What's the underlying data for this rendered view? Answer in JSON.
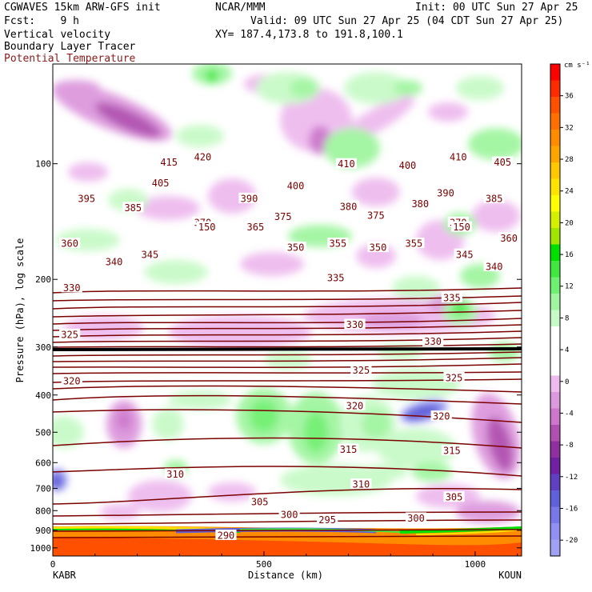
{
  "header": {
    "model": "CGWAVES 15km ARW-GFS init",
    "center": "NCAR/MMM",
    "init": "Init: 00 UTC Sun 27 Apr 25",
    "fcst": "Fcst:    9 h",
    "valid": "Valid: 09 UTC Sun 27 Apr 25 (04 CDT Sun 27 Apr 25)",
    "field1": "Vertical velocity",
    "field2": "Boundary Layer Tracer",
    "field3": "Potential Temperature",
    "xy": "XY= 187.4,173.8 to 191.8,100.1"
  },
  "colors": {
    "theta": "#7a0000",
    "field3_text": "#8b1a1a"
  },
  "chart_data": {
    "type": "heatmap",
    "xlabel": "Distance (km)",
    "ylabel": "Pressure (hPa), log scale",
    "xlim": [
      0,
      1110
    ],
    "ylim": [
      1050,
      55
    ],
    "y_scale": "log",
    "x_ticks": [
      "0",
      "500",
      "1000"
    ],
    "x_tick_values": [
      0,
      500,
      1000
    ],
    "y_ticks": [
      "100",
      "200",
      "300",
      "400",
      "500",
      "600",
      "700",
      "800",
      "900",
      "1000"
    ],
    "y_tick_values": [
      100,
      200,
      300,
      400,
      500,
      600,
      700,
      800,
      900,
      1000
    ],
    "left_endpoint": "KABR",
    "right_endpoint": "KOUN",
    "colorbar": {
      "unit": "cm s⁻¹",
      "labels": [
        "36",
        "32",
        "28",
        "24",
        "20",
        "16",
        "12",
        "8",
        "4",
        "0",
        "-4",
        "-8",
        "-12",
        "-16",
        "-20"
      ],
      "label_values": [
        36,
        32,
        28,
        24,
        20,
        16,
        12,
        8,
        4,
        0,
        -4,
        -8,
        -12,
        -16,
        -20
      ],
      "colors": [
        "#ff0000",
        "#ff2a00",
        "#ff5000",
        "#ff7000",
        "#ff8c00",
        "#ffa500",
        "#ffc800",
        "#ffe400",
        "#ffff00",
        "#d4f000",
        "#a0e600",
        "#00e000",
        "#40e840",
        "#70f070",
        "#a0f5a0",
        "#c8fac8",
        "#ffffff",
        "#ffffff",
        "#ffffff",
        "#eebbee",
        "#dd99dd",
        "#cc77cc",
        "#b050b0",
        "#9030a0",
        "#7020a0",
        "#6040c0",
        "#6060d8",
        "#7878e8",
        "#9090f0",
        "#a0a0f5"
      ]
    },
    "theta_labels": [
      {
        "text": "415",
        "x": 275,
        "p": 99
      },
      {
        "text": "420",
        "x": 355,
        "p": 96
      },
      {
        "text": "410",
        "x": 695,
        "p": 100
      },
      {
        "text": "400",
        "x": 840,
        "p": 101
      },
      {
        "text": "410",
        "x": 960,
        "p": 96
      },
      {
        "text": "405",
        "x": 1065,
        "p": 99
      },
      {
        "text": "405",
        "x": 255,
        "p": 112
      },
      {
        "text": "400",
        "x": 575,
        "p": 114
      },
      {
        "text": "390",
        "x": 930,
        "p": 119
      },
      {
        "text": "385",
        "x": 1045,
        "p": 123
      },
      {
        "text": "395",
        "x": 80,
        "p": 123
      },
      {
        "text": "385",
        "x": 190,
        "p": 130
      },
      {
        "text": "390",
        "x": 465,
        "p": 123
      },
      {
        "text": "380",
        "x": 700,
        "p": 129
      },
      {
        "text": "380",
        "x": 870,
        "p": 127
      },
      {
        "text": "375",
        "x": 545,
        "p": 137
      },
      {
        "text": "375",
        "x": 765,
        "p": 136
      },
      {
        "text": "370",
        "x": 355,
        "p": 142
      },
      {
        "text": "150",
        "x": 365,
        "p": 146
      },
      {
        "text": "365",
        "x": 480,
        "p": 146
      },
      {
        "text": "370",
        "x": 960,
        "p": 142
      },
      {
        "text": "150",
        "x": 968,
        "p": 146
      },
      {
        "text": "360",
        "x": 40,
        "p": 161
      },
      {
        "text": "350",
        "x": 575,
        "p": 165
      },
      {
        "text": "355",
        "x": 675,
        "p": 161
      },
      {
        "text": "350",
        "x": 770,
        "p": 165
      },
      {
        "text": "355",
        "x": 855,
        "p": 161
      },
      {
        "text": "360",
        "x": 1080,
        "p": 156
      },
      {
        "text": "345",
        "x": 230,
        "p": 172
      },
      {
        "text": "340",
        "x": 145,
        "p": 180
      },
      {
        "text": "345",
        "x": 975,
        "p": 172
      },
      {
        "text": "340",
        "x": 1045,
        "p": 185
      },
      {
        "text": "330",
        "x": 45,
        "p": 210
      },
      {
        "text": "335",
        "x": 670,
        "p": 198
      },
      {
        "text": "335",
        "x": 945,
        "p": 223
      },
      {
        "text": "325",
        "x": 40,
        "p": 278
      },
      {
        "text": "330",
        "x": 715,
        "p": 262
      },
      {
        "text": "330",
        "x": 900,
        "p": 290
      },
      {
        "text": "325",
        "x": 730,
        "p": 344
      },
      {
        "text": "325",
        "x": 950,
        "p": 360
      },
      {
        "text": "320",
        "x": 45,
        "p": 367
      },
      {
        "text": "320",
        "x": 715,
        "p": 426
      },
      {
        "text": "320",
        "x": 920,
        "p": 454
      },
      {
        "text": "315",
        "x": 700,
        "p": 554
      },
      {
        "text": "315",
        "x": 945,
        "p": 558
      },
      {
        "text": "310",
        "x": 290,
        "p": 642
      },
      {
        "text": "310",
        "x": 730,
        "p": 682
      },
      {
        "text": "305",
        "x": 490,
        "p": 757
      },
      {
        "text": "305",
        "x": 950,
        "p": 737
      },
      {
        "text": "300",
        "x": 560,
        "p": 818
      },
      {
        "text": "295",
        "x": 650,
        "p": 844
      },
      {
        "text": "300",
        "x": 860,
        "p": 836
      },
      {
        "text": "290",
        "x": 410,
        "p": 927
      }
    ]
  }
}
